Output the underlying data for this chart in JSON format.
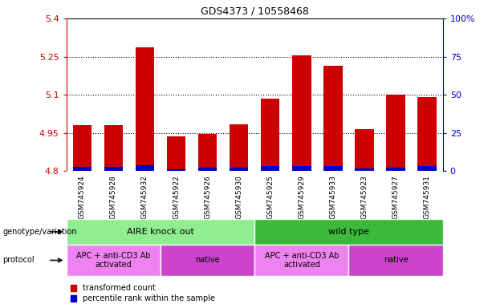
{
  "title": "GDS4373 / 10558468",
  "samples": [
    "GSM745924",
    "GSM745928",
    "GSM745932",
    "GSM745922",
    "GSM745926",
    "GSM745930",
    "GSM745925",
    "GSM745929",
    "GSM745933",
    "GSM745923",
    "GSM745927",
    "GSM745931"
  ],
  "red_values": [
    4.98,
    4.98,
    5.285,
    4.935,
    4.945,
    4.985,
    5.085,
    5.255,
    5.215,
    4.965,
    5.1,
    5.09
  ],
  "blue_values": [
    4.815,
    4.815,
    4.822,
    4.808,
    4.812,
    4.812,
    4.818,
    4.82,
    4.82,
    4.81,
    4.812,
    4.818
  ],
  "ymin": 4.8,
  "ymax": 5.4,
  "yticks_left": [
    4.8,
    4.95,
    5.1,
    5.25,
    5.4
  ],
  "yticks_right": [
    0,
    25,
    50,
    75,
    100
  ],
  "ytick_labels_right": [
    "0",
    "25",
    "50",
    "75",
    "100%"
  ],
  "bar_width": 0.6,
  "red_color": "#cc0000",
  "blue_color": "#0000cc",
  "bg_color": "#ffffff",
  "tick_area_bg": "#c8c8c8",
  "genotype_aire_color": "#90ee90",
  "genotype_wild_color": "#3cb83c",
  "protocol_apc_color": "#ee82ee",
  "protocol_native_color": "#cc44cc",
  "legend_red": "transformed count",
  "legend_blue": "percentile rank within the sample",
  "genotype_label": "genotype/variation",
  "protocol_label": "protocol",
  "aire_label": "AIRE knock out",
  "wild_label": "wild type",
  "apc_label": "APC + anti-CD3 Ab\nactivated",
  "native_label": "native"
}
